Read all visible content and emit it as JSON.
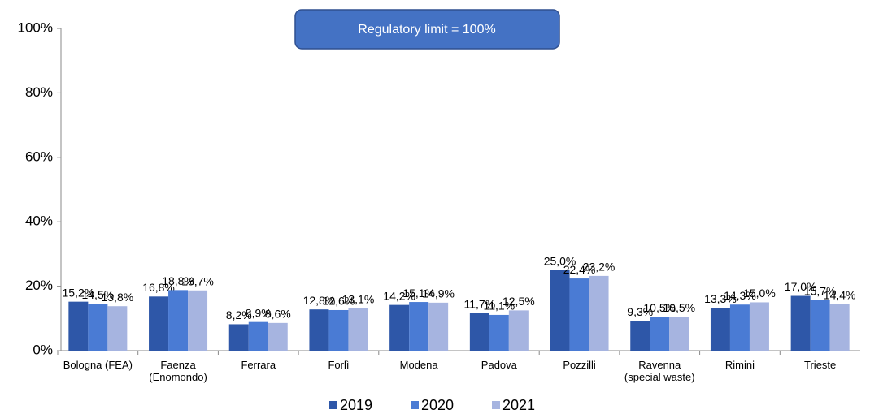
{
  "chart_data": {
    "type": "bar",
    "annotation": "Regulatory limit = 100%",
    "categories": [
      "Bologna (FEA)",
      "Faenza (Enomondo)",
      "Ferrara",
      "Forlì",
      "Modena",
      "Padova",
      "Pozzilli",
      "Ravenna (special waste)",
      "Rimini",
      "Trieste"
    ],
    "series": [
      {
        "name": "2019",
        "color": "#2e57a8",
        "values": [
          15.2,
          16.8,
          8.2,
          12.8,
          14.2,
          11.7,
          25.0,
          9.3,
          13.3,
          17.0
        ],
        "value_labels": [
          "15,2%",
          "16,8%",
          "8,2%",
          "12,8%",
          "14,2%",
          "11,7%",
          "25,0%",
          "9,3%",
          "13,3%",
          "17,0%"
        ]
      },
      {
        "name": "2020",
        "color": "#4a7bd4",
        "values": [
          14.5,
          18.8,
          8.9,
          12.6,
          15.1,
          11.1,
          22.4,
          10.5,
          14.3,
          15.7
        ],
        "value_labels": [
          "14,5%",
          "18,8%",
          "8,9%",
          "12,6%",
          "15,1%",
          "11,1%",
          "22,4%",
          "10,5%",
          "14,3%",
          "15,7%"
        ]
      },
      {
        "name": "2021",
        "color": "#a6b4e0",
        "values": [
          13.8,
          18.7,
          8.6,
          13.1,
          14.9,
          12.5,
          23.2,
          10.5,
          15.0,
          14.4
        ],
        "value_labels": [
          "13,8%",
          "18,7%",
          "8,6%",
          "13,1%",
          "14,9%",
          "12,5%",
          "23,2%",
          "10,5%",
          "15,0%",
          "14,4%"
        ]
      }
    ],
    "ylim": [
      0,
      100
    ],
    "yticks": [
      {
        "value": 0,
        "label": "0%"
      },
      {
        "value": 20,
        "label": "20%"
      },
      {
        "value": 40,
        "label": "40%"
      },
      {
        "value": 60,
        "label": "60%"
      },
      {
        "value": 80,
        "label": "80%"
      },
      {
        "value": 100,
        "label": "100%"
      }
    ],
    "grid": false,
    "legend": "bottom"
  }
}
